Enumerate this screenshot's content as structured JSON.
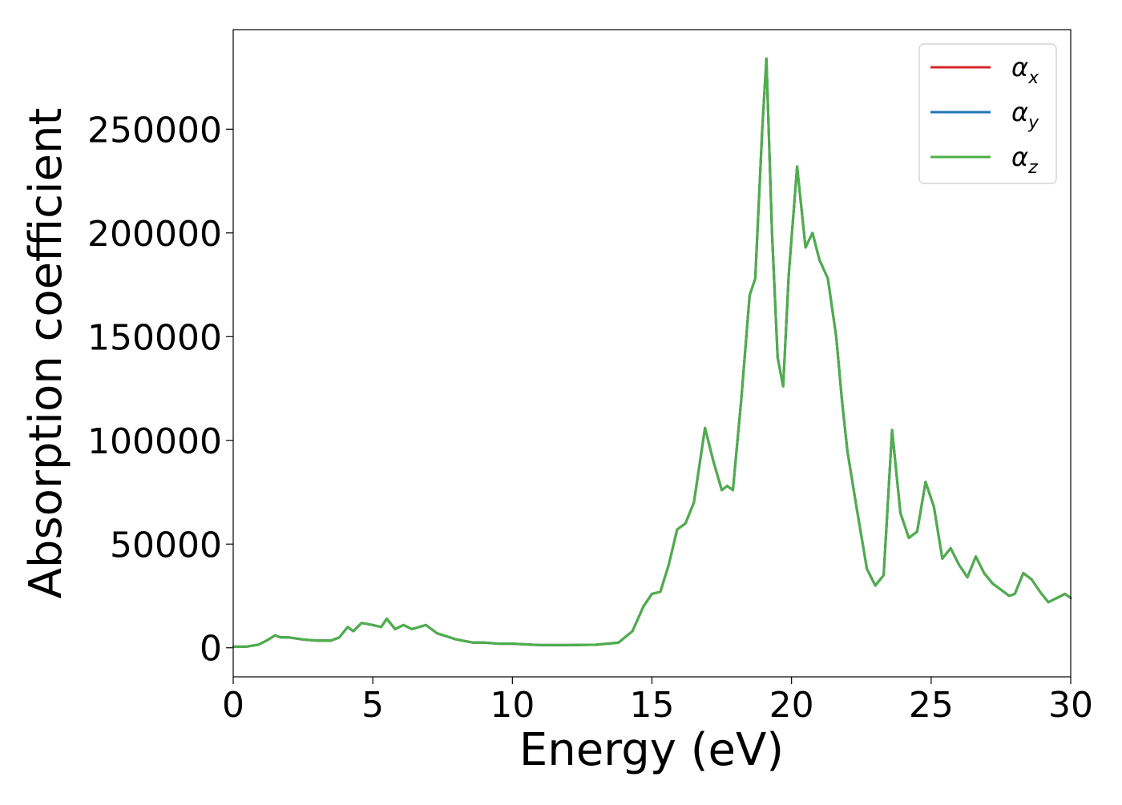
{
  "chart_data": {
    "type": "line",
    "title": "",
    "xlabel": "Energy (eV)",
    "ylabel": "Absorption coefficient",
    "xlim": [
      0,
      30
    ],
    "ylim": [
      -14000,
      298000
    ],
    "xticks": [
      0,
      5,
      10,
      15,
      20,
      25,
      30
    ],
    "yticks": [
      0,
      50000,
      100000,
      150000,
      200000,
      250000
    ],
    "grid": false,
    "legend_position": "top-right",
    "legend": [
      {
        "symbol": "α",
        "subscript": "x",
        "color": "#d62728"
      },
      {
        "symbol": "α",
        "subscript": "y",
        "color": "#1f77b4"
      },
      {
        "symbol": "α",
        "subscript": "z",
        "color": "#4daf4a"
      }
    ],
    "x": [
      0,
      0.5,
      0.9,
      1.2,
      1.5,
      1.7,
      2.0,
      2.5,
      3.0,
      3.5,
      3.8,
      4.1,
      4.3,
      4.6,
      5.0,
      5.3,
      5.5,
      5.8,
      6.1,
      6.4,
      6.9,
      7.3,
      8.0,
      8.6,
      9.0,
      9.5,
      10.0,
      11.0,
      12.0,
      13.0,
      13.8,
      14.3,
      14.7,
      15.0,
      15.3,
      15.6,
      15.9,
      16.2,
      16.5,
      16.9,
      17.2,
      17.5,
      17.7,
      17.9,
      18.2,
      18.5,
      18.7,
      18.95,
      19.1,
      19.3,
      19.5,
      19.7,
      19.9,
      20.2,
      20.5,
      20.75,
      21.0,
      21.3,
      21.6,
      21.8,
      22.0,
      22.3,
      22.7,
      23.0,
      23.3,
      23.6,
      23.9,
      24.2,
      24.5,
      24.8,
      24.9,
      25.1,
      25.4,
      25.7,
      26.0,
      26.3,
      26.6,
      26.9,
      27.2,
      27.5,
      27.8,
      28.0,
      28.3,
      28.6,
      28.9,
      29.2,
      29.5,
      29.8,
      30.0
    ],
    "series": [
      {
        "color": "#d62728",
        "values": [
          500,
          600,
          1500,
          3500,
          6000,
          5000,
          5000,
          4000,
          3500,
          3500,
          5000,
          10000,
          8000,
          12000,
          11000,
          10000,
          14000,
          9000,
          11000,
          9000,
          11000,
          7000,
          4000,
          2500,
          2500,
          2000,
          2000,
          1300,
          1300,
          1500,
          2500,
          8000,
          20000,
          26000,
          27000,
          40000,
          57000,
          60000,
          70000,
          106000,
          90000,
          76000,
          78000,
          76000,
          120000,
          170000,
          178000,
          250000,
          284000,
          200000,
          140000,
          126000,
          180000,
          232000,
          193000,
          200000,
          187000,
          178000,
          150000,
          120000,
          95000,
          70000,
          38000,
          30000,
          35000,
          105000,
          65000,
          53000,
          56000,
          80000,
          76000,
          68000,
          43000,
          48000,
          40000,
          34000,
          44000,
          36000,
          31000,
          28000,
          25000,
          26000,
          36000,
          33000,
          27000,
          22000,
          24000,
          26000,
          24000
        ]
      },
      {
        "color": "#1f77b4",
        "values": [
          500,
          600,
          1500,
          3500,
          6000,
          5000,
          5000,
          4000,
          3500,
          3500,
          5000,
          10000,
          8000,
          12000,
          11000,
          10000,
          14000,
          9000,
          11000,
          9000,
          11000,
          7000,
          4000,
          2500,
          2500,
          2000,
          2000,
          1300,
          1300,
          1500,
          2500,
          8000,
          20000,
          26000,
          27000,
          40000,
          57000,
          60000,
          70000,
          106000,
          90000,
          76000,
          78000,
          76000,
          120000,
          170000,
          178000,
          250000,
          284000,
          200000,
          140000,
          126000,
          180000,
          232000,
          193000,
          200000,
          187000,
          178000,
          150000,
          120000,
          95000,
          70000,
          38000,
          30000,
          35000,
          105000,
          65000,
          53000,
          56000,
          80000,
          76000,
          68000,
          43000,
          48000,
          40000,
          34000,
          44000,
          36000,
          31000,
          28000,
          25000,
          26000,
          36000,
          33000,
          27000,
          22000,
          24000,
          26000,
          24000
        ]
      },
      {
        "color": "#4daf4a",
        "values": [
          500,
          600,
          1500,
          3500,
          6000,
          5000,
          5000,
          4000,
          3500,
          3500,
          5000,
          10000,
          8000,
          12000,
          11000,
          10000,
          14000,
          9000,
          11000,
          9000,
          11000,
          7000,
          4000,
          2500,
          2500,
          2000,
          2000,
          1300,
          1300,
          1500,
          2500,
          8000,
          20000,
          26000,
          27000,
          40000,
          57000,
          60000,
          70000,
          106000,
          90000,
          76000,
          78000,
          76000,
          120000,
          170000,
          178000,
          250000,
          284000,
          200000,
          140000,
          126000,
          180000,
          232000,
          193000,
          200000,
          187000,
          178000,
          150000,
          120000,
          95000,
          70000,
          38000,
          30000,
          35000,
          105000,
          65000,
          53000,
          56000,
          80000,
          76000,
          68000,
          43000,
          48000,
          40000,
          34000,
          44000,
          36000,
          31000,
          28000,
          25000,
          26000,
          36000,
          33000,
          27000,
          22000,
          24000,
          26000,
          24000
        ]
      }
    ]
  }
}
